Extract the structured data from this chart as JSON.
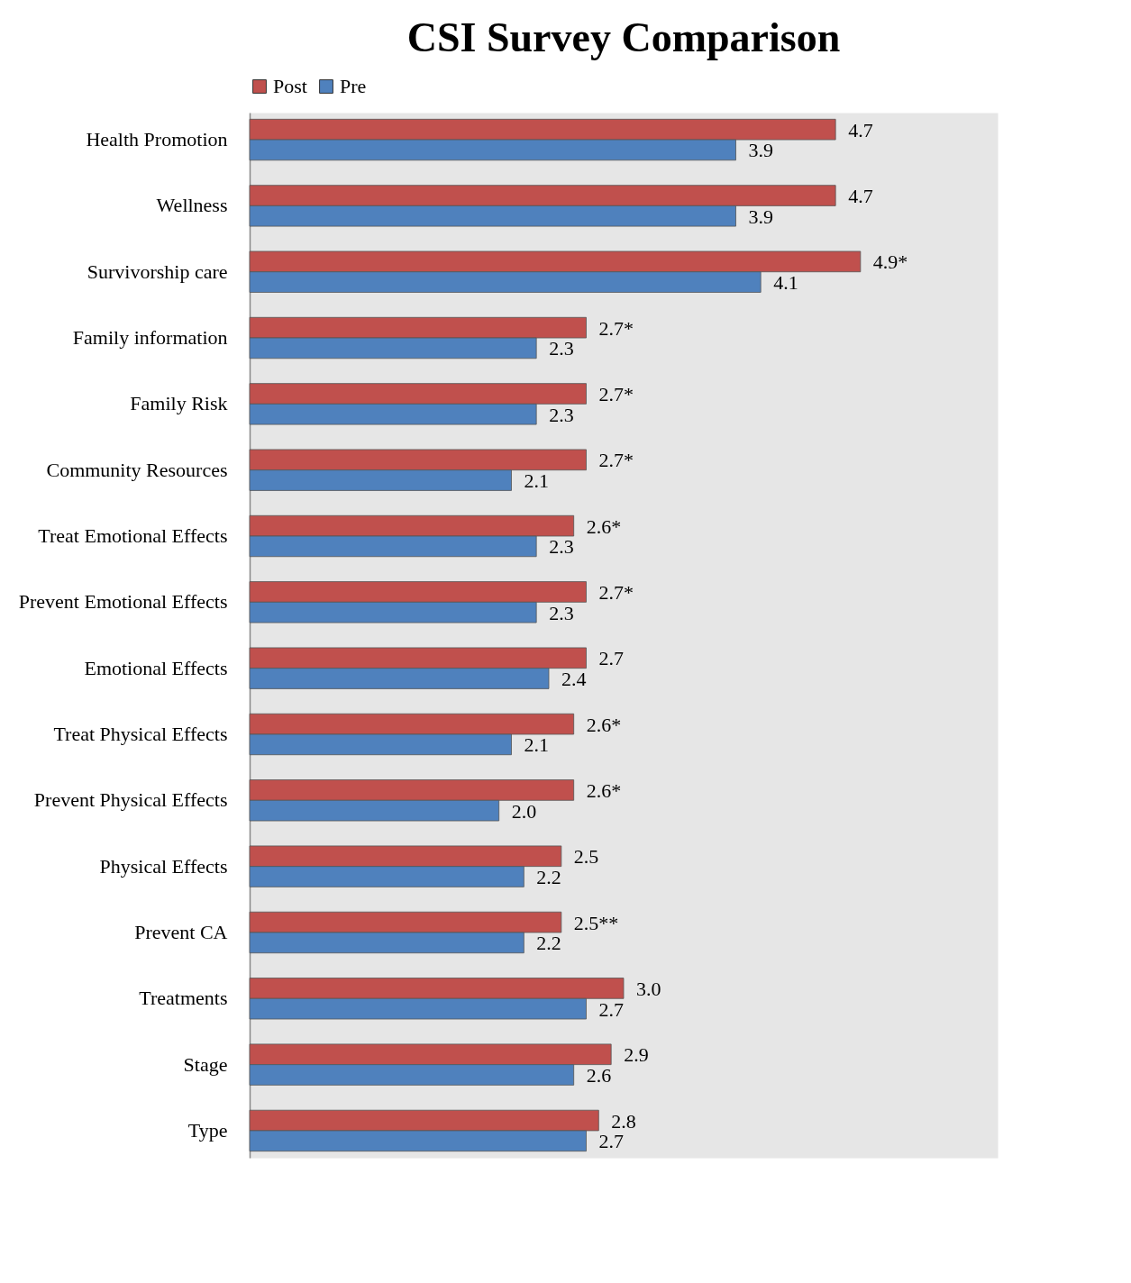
{
  "chart_data": {
    "type": "bar",
    "orientation": "horizontal",
    "title": "CSI Survey Comparison",
    "categories": [
      "Health Promotion",
      "Wellness",
      "Survivorship care",
      "Family  information",
      "Family  Risk",
      "Community Resources",
      "Treat Emotional Effects",
      "Prevent Emotional Effects",
      "Emotional Effects",
      "Treat Physical Effects",
      "Prevent Physical Effects",
      "Physical Effects",
      "Prevent CA",
      "Treatments",
      "Stage",
      "Type"
    ],
    "series": [
      {
        "name": "Post",
        "color": "#c0504d",
        "values": [
          4.7,
          4.7,
          4.9,
          2.7,
          2.7,
          2.7,
          2.6,
          2.7,
          2.7,
          2.6,
          2.6,
          2.5,
          2.5,
          3.0,
          2.9,
          2.8
        ],
        "value_labels": [
          "4.7",
          "4.7",
          "4.9*",
          "2.7*",
          "2.7*",
          "2.7*",
          "2.6*",
          "2.7*",
          "2.7",
          "2.6*",
          "2.6*",
          "2.5",
          "2.5**",
          "3.0",
          "2.9",
          "2.8"
        ]
      },
      {
        "name": "Pre",
        "color": "#4f81bd",
        "values": [
          3.9,
          3.9,
          4.1,
          2.3,
          2.3,
          2.1,
          2.3,
          2.3,
          2.4,
          2.1,
          2.0,
          2.2,
          2.2,
          2.7,
          2.6,
          2.7
        ],
        "value_labels": [
          "3.9",
          "3.9",
          "4.1",
          "2.3",
          "2.3",
          "2.1",
          "2.3",
          "2.3",
          "2.4",
          "2.1",
          "2.0",
          "2.2",
          "2.2",
          "2.7",
          "2.6",
          "2.7"
        ]
      }
    ],
    "xlim": [
      0,
      6
    ],
    "tick_labels": "y",
    "legend": "top"
  }
}
